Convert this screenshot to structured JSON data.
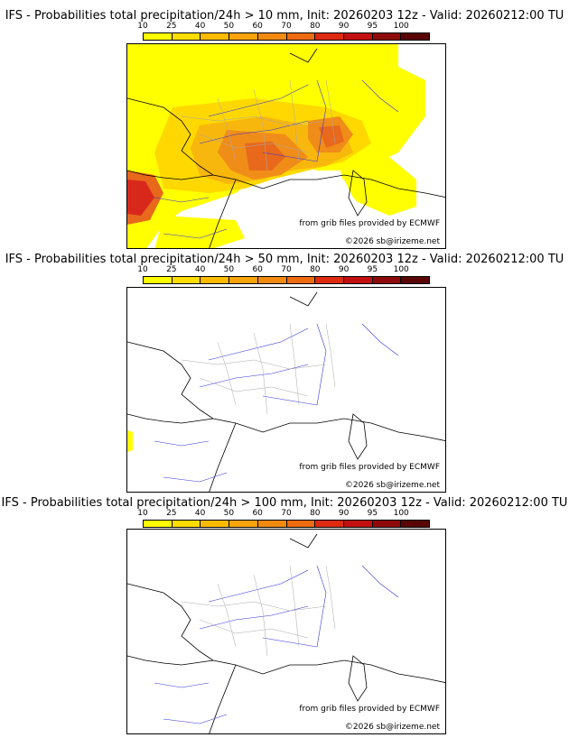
{
  "panels": [
    {
      "title": "IFS - Probabilities total precipitation/24h > 10 mm, Init: 20260203 12z - Valid: 20260212:00 TU",
      "threshold_mm": 10,
      "source_credit": "from grib files provided by ECMWF",
      "copyright": "©2026 sb@irizeme.net"
    },
    {
      "title": "IFS - Probabilities total precipitation/24h > 50 mm, Init: 20260203 12z - Valid: 20260212:00 TU",
      "threshold_mm": 50,
      "source_credit": "from grib files provided by ECMWF",
      "copyright": "©2026 sb@irizeme.net"
    },
    {
      "title": "IFS - Probabilities total precipitation/24h > 100 mm, Init: 20260203 12z - Valid: 20260212:00 TU",
      "threshold_mm": 100,
      "source_credit": "from grib files provided by ECMWF",
      "copyright": "©2026 sb@irizeme.net"
    }
  ],
  "legend": {
    "labels": [
      "10",
      "25",
      "40",
      "50",
      "60",
      "70",
      "80",
      "90",
      "95",
      "100"
    ],
    "colors": [
      "#ffff00",
      "#ffdd00",
      "#ffbb00",
      "#f9a40c",
      "#f28a10",
      "#ee6b10",
      "#dd2a10",
      "#c21010",
      "#8e0a0a",
      "#5a0505"
    ]
  },
  "map_colors": {
    "yellow": "#ffff00",
    "light_orange": "#fed800",
    "orange": "#f8b70d",
    "dark_orange": "#f08c18",
    "red_orange": "#e8681c",
    "red": "#d8281c",
    "coast": "#000000",
    "rivers": "#3333dd",
    "borders": "#aaaaaa"
  }
}
